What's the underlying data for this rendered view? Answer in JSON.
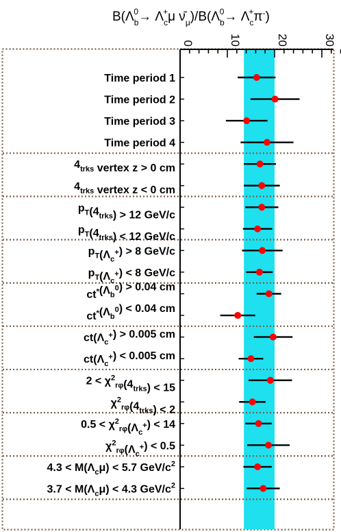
{
  "chart_data": {
    "type": "scatter",
    "title": "B(Λb0→ Λc+μ ν̄μ)/B(Λb0→ Λc+π-)",
    "xlim": [
      0,
      34
    ],
    "x_ticks": [
      {
        "value": 0,
        "label": "0"
      },
      {
        "value": 10,
        "label": "10"
      },
      {
        "value": 20,
        "label": "20"
      },
      {
        "value": 30,
        "label": "30"
      }
    ],
    "band": {
      "low": 13.5,
      "high": 20.0,
      "color": "#1fe0ee"
    },
    "point_color": "#ff0000",
    "separator_color": "#7a5c48",
    "points": [
      {
        "label": "Time period 1",
        "value": 16.2,
        "err_low": 4.0,
        "err_high": 4.0
      },
      {
        "label": "Time period 2",
        "value": 20.1,
        "err_low": 5.2,
        "err_high": 5.2
      },
      {
        "label": "Time period 3",
        "value": 14.1,
        "err_low": 4.4,
        "err_high": 4.4
      },
      {
        "label": "Time period 4",
        "value": 18.4,
        "err_low": 5.6,
        "err_high": 5.6
      },
      {
        "label": "4trks vertex z > 0 cm",
        "value": 16.9,
        "err_low": 3.4,
        "err_high": 3.4
      },
      {
        "label": "4trks vertex z < 0 cm",
        "value": 17.3,
        "err_low": 3.8,
        "err_high": 3.8
      },
      {
        "label": "pT(4trks) > 12 GeV/c",
        "value": 17.3,
        "err_low": 3.5,
        "err_high": 3.5
      },
      {
        "label": "pT(4trks) < 12 GeV/c",
        "value": 16.4,
        "err_low": 3.1,
        "err_high": 3.1
      },
      {
        "label": "pT(Λc+) > 8 GeV/c",
        "value": 17.4,
        "err_low": 4.3,
        "err_high": 4.3
      },
      {
        "label": "pT(Λc+) < 8 GeV/c",
        "value": 16.8,
        "err_low": 2.8,
        "err_high": 2.8
      },
      {
        "label": "ct*(Λb0) > 0.04 cm",
        "value": 18.8,
        "err_low": 2.6,
        "err_high": 2.6
      },
      {
        "label": "ct*(Λb0) < 0.04 cm",
        "value": 12.2,
        "err_low": 3.7,
        "err_high": 3.7
      },
      {
        "label": "ct(Λc+) > 0.005 cm",
        "value": 19.7,
        "err_low": 4.1,
        "err_high": 4.1
      },
      {
        "label": "ct(Λc+) < 0.005 cm",
        "value": 15.0,
        "err_low": 2.6,
        "err_high": 2.6
      },
      {
        "label": "2 < χ2rφ(4trks) < 15",
        "value": 19.1,
        "err_low": 4.6,
        "err_high": 4.6
      },
      {
        "label": "χ2rφ(4trks) < 2",
        "value": 15.3,
        "err_low": 2.8,
        "err_high": 2.8
      },
      {
        "label": "0.5 < χ2rφ(Λc+) < 14",
        "value": 16.6,
        "err_low": 2.8,
        "err_high": 2.8
      },
      {
        "label": "χ2rφ(Λc+) < 0.5",
        "value": 18.7,
        "err_low": 4.5,
        "err_high": 4.5
      },
      {
        "label": "4.3 < M(Λcμ) < 5.7 GeV/c2",
        "value": 16.4,
        "err_low": 3.0,
        "err_high": 3.0
      },
      {
        "label": "3.7 < M(Λcμ) < 4.3 GeV/c2",
        "value": 17.6,
        "err_low": 3.5,
        "err_high": 3.5
      }
    ],
    "groups_end_after": [
      4,
      6,
      8,
      10,
      12,
      14,
      16,
      18,
      20
    ]
  }
}
